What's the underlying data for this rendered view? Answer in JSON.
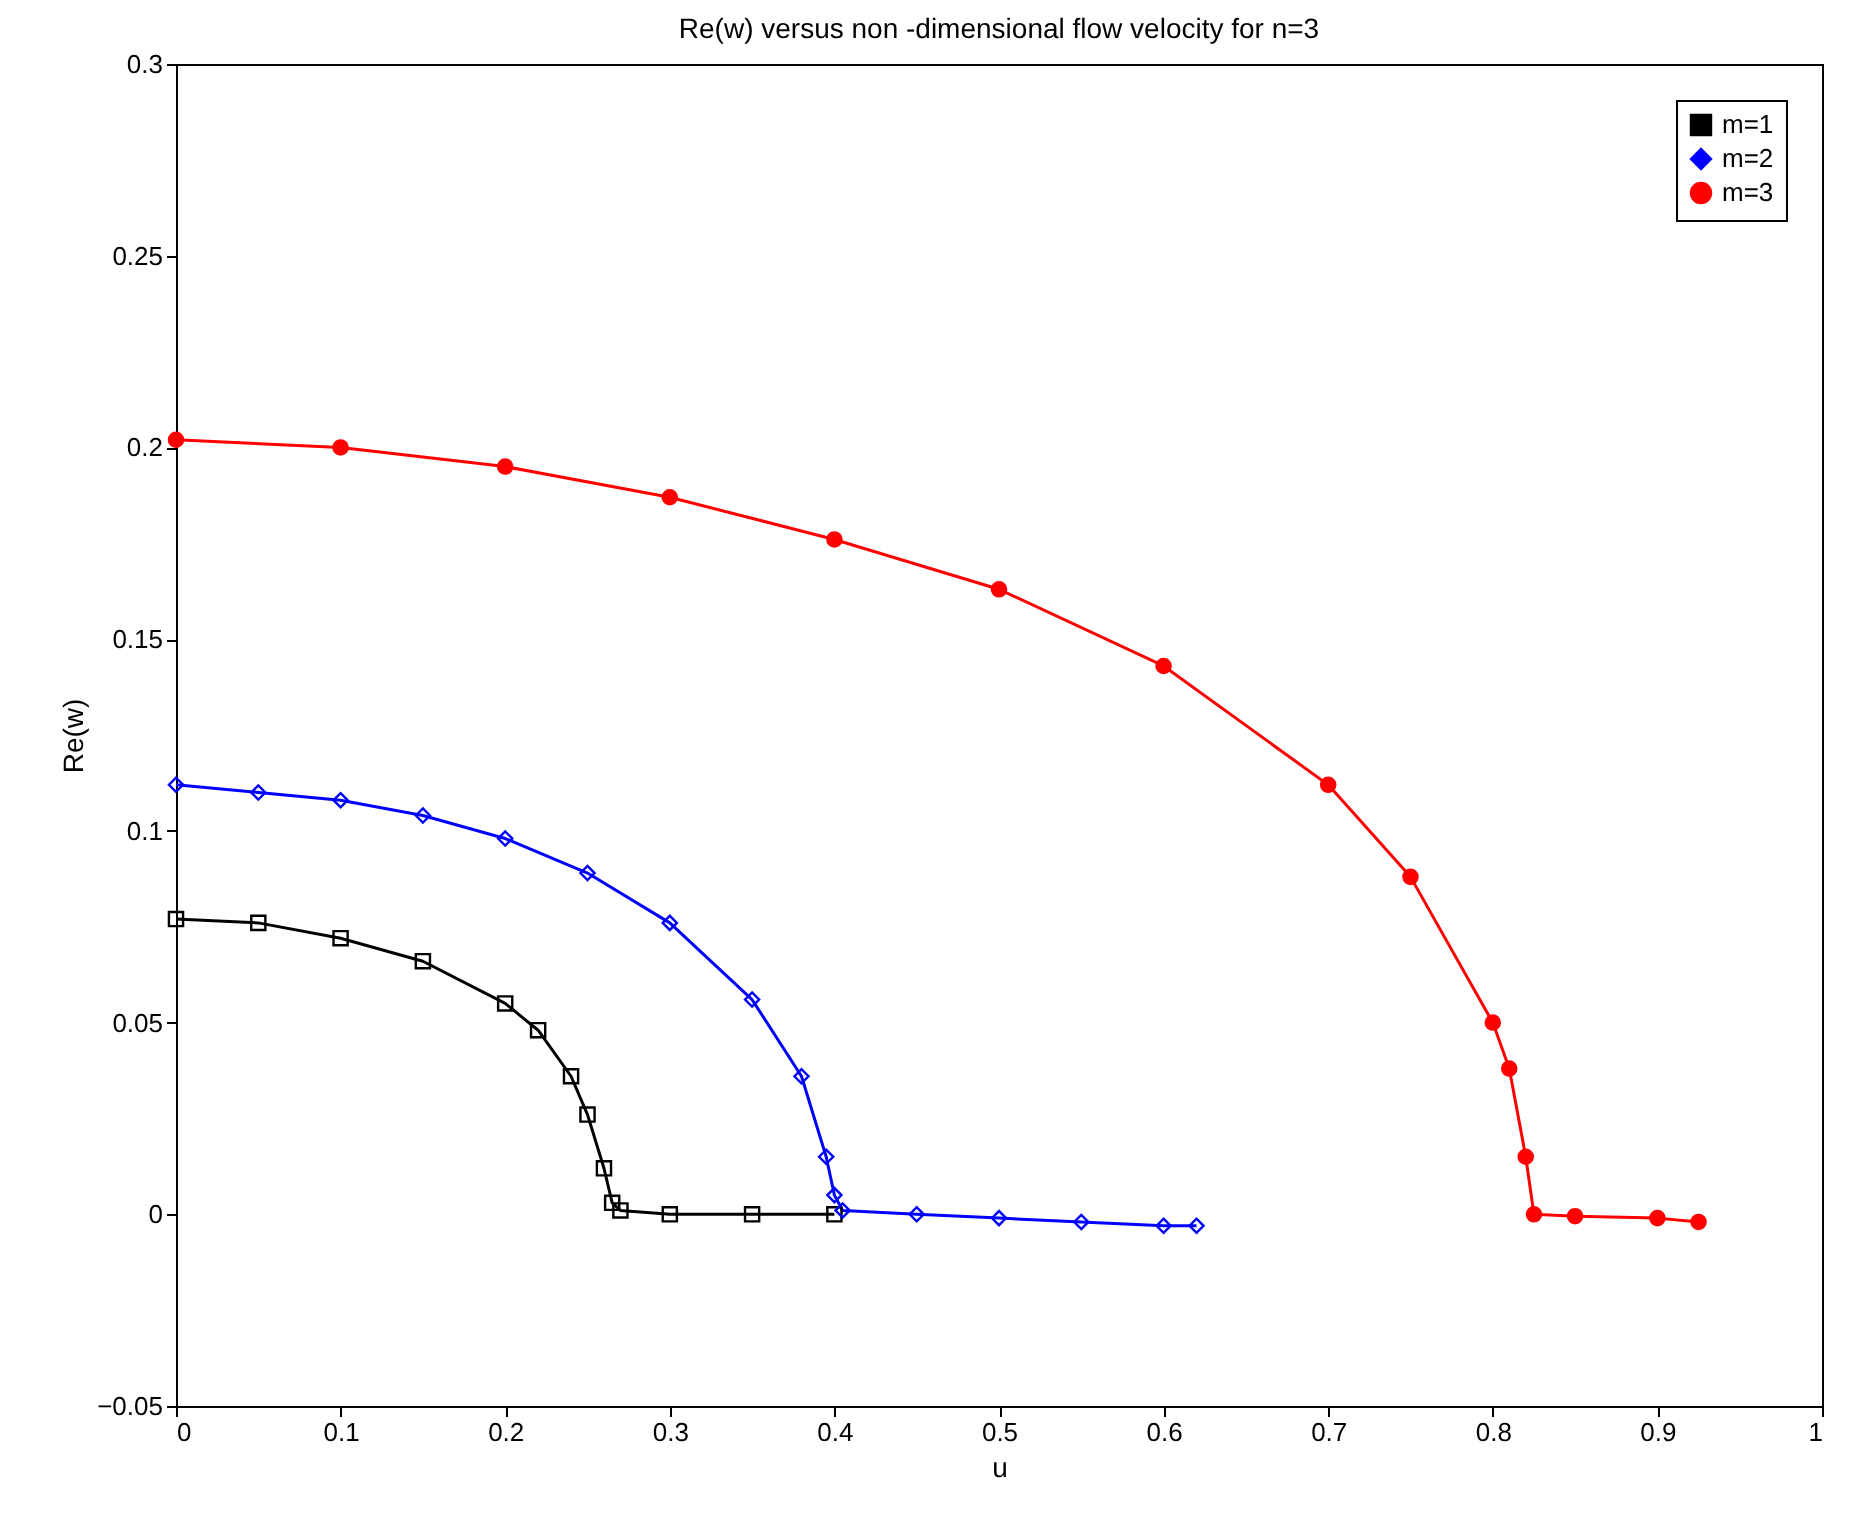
{
  "chart_data": {
    "type": "line",
    "title": "Re(w) versus non -dimensional flow velocity for n=3",
    "xlabel": "u",
    "ylabel": "Re(w)",
    "xlim": [
      0,
      1
    ],
    "ylim": [
      -0.05,
      0.3
    ],
    "xticks": [
      0,
      0.1,
      0.2,
      0.3,
      0.4,
      0.5,
      0.6,
      0.7,
      0.8,
      0.9,
      1
    ],
    "yticks": [
      -0.05,
      0,
      0.05,
      0.1,
      0.15,
      0.2,
      0.25,
      0.3
    ],
    "grid": false,
    "legend": "top right",
    "series": [
      {
        "name": "m=1",
        "color": "#000000",
        "marker": "square",
        "x": [
          0,
          0.05,
          0.1,
          0.15,
          0.2,
          0.22,
          0.24,
          0.25,
          0.26,
          0.265,
          0.27,
          0.3,
          0.35,
          0.4
        ],
        "values": [
          0.077,
          0.076,
          0.072,
          0.066,
          0.055,
          0.048,
          0.036,
          0.026,
          0.012,
          0.003,
          0.001,
          0,
          0,
          0
        ]
      },
      {
        "name": "m=2",
        "color": "#0000ff",
        "marker": "diamond",
        "x": [
          0,
          0.05,
          0.1,
          0.15,
          0.2,
          0.25,
          0.3,
          0.35,
          0.38,
          0.395,
          0.4,
          0.405,
          0.45,
          0.5,
          0.55,
          0.6,
          0.62
        ],
        "values": [
          0.112,
          0.11,
          0.108,
          0.104,
          0.098,
          0.089,
          0.076,
          0.056,
          0.036,
          0.015,
          0.005,
          0.001,
          0,
          -0.001,
          -0.002,
          -0.003,
          -0.003
        ]
      },
      {
        "name": "m=3",
        "color": "#ff0000",
        "marker": "circle",
        "x": [
          0,
          0.1,
          0.2,
          0.3,
          0.4,
          0.5,
          0.6,
          0.7,
          0.75,
          0.8,
          0.81,
          0.82,
          0.825,
          0.85,
          0.9,
          0.925
        ],
        "values": [
          0.202,
          0.2,
          0.195,
          0.187,
          0.176,
          0.163,
          0.143,
          0.112,
          0.088,
          0.05,
          0.038,
          0.015,
          0,
          -0.0005,
          -0.001,
          -0.002
        ]
      }
    ]
  }
}
